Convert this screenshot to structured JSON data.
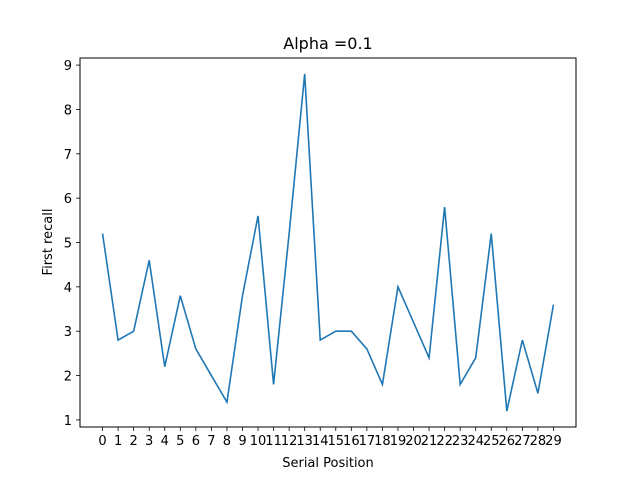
{
  "chart_data": {
    "type": "line",
    "title": "Alpha =0.1",
    "xlabel": "Serial Position",
    "ylabel": "First recall",
    "x": [
      0,
      1,
      2,
      3,
      4,
      5,
      6,
      7,
      8,
      9,
      10,
      11,
      12,
      13,
      14,
      15,
      16,
      17,
      18,
      19,
      20,
      21,
      22,
      23,
      24,
      25,
      26,
      27,
      28,
      29
    ],
    "x_tick_labels": [
      "0",
      "1",
      "2",
      "3",
      "4",
      "5",
      "6",
      "7",
      "8",
      "9",
      "10",
      "11",
      "12",
      "13",
      "14",
      "15",
      "16",
      "17",
      "18",
      "19",
      "20",
      "21",
      "22",
      "23",
      "24",
      "25",
      "26",
      "27",
      "28",
      "29"
    ],
    "y_ticks": [
      1,
      2,
      3,
      4,
      5,
      6,
      7,
      8,
      9
    ],
    "xlim": [
      -1.45,
      30.45
    ],
    "ylim": [
      0.84,
      9.16
    ],
    "grid": false,
    "line_color": "#1f77b4",
    "series": [
      {
        "values": [
          5.2,
          2.8,
          3.0,
          4.6,
          2.2,
          3.8,
          2.6,
          2.0,
          1.4,
          3.8,
          5.6,
          1.8,
          5.2,
          8.8,
          2.8,
          3.0,
          3.0,
          2.6,
          1.8,
          4.0,
          3.2,
          2.4,
          5.8,
          1.8,
          2.4,
          5.2,
          1.2,
          2.8,
          1.6,
          3.6
        ]
      }
    ]
  }
}
